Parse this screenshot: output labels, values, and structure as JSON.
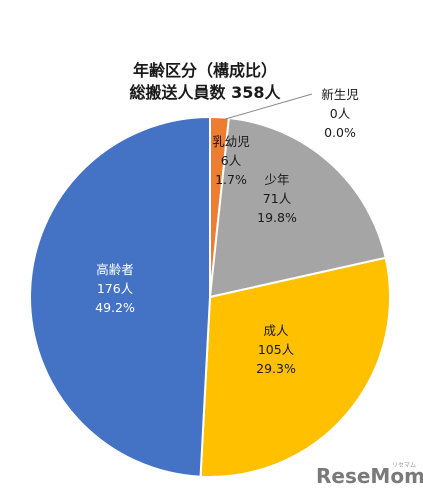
{
  "chart_data": {
    "type": "pie",
    "title": [
      "年齢区分（構成比）",
      "総搬送人員数 358人"
    ],
    "start": "top",
    "direction": "clockwise",
    "slices": [
      {
        "name": "新生児",
        "count": "0人",
        "percent_text": "0.0%",
        "value": 0,
        "color": "#7f7f7f",
        "label_color": "#1a1a1a"
      },
      {
        "name": "乳幼児",
        "count": "6人",
        "percent_text": "1.7%",
        "value": 6,
        "color": "#ed7d31",
        "label_color": "#1a1a1a"
      },
      {
        "name": "少年",
        "count": "71人",
        "percent_text": "19.8%",
        "value": 71,
        "color": "#a5a5a5",
        "label_color": "#1a1a1a"
      },
      {
        "name": "成人",
        "count": "105人",
        "percent_text": "29.3%",
        "value": 105,
        "color": "#ffc000",
        "label_color": "#1a1a1a"
      },
      {
        "name": "高齢者",
        "count": "176人",
        "percent_text": "49.2%",
        "value": 176,
        "color": "#4472c4",
        "label_color": "#ffffff"
      }
    ]
  },
  "watermark": {
    "brand": "ReseMom",
    "sub": "リセマム"
  }
}
